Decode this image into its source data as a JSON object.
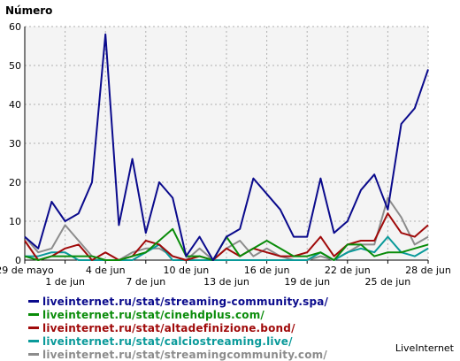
{
  "chart_data": {
    "type": "line",
    "ylabel": "Número",
    "ylim": [
      0,
      60
    ],
    "yticks": [
      0,
      10,
      20,
      30,
      40,
      50,
      60
    ],
    "x": [
      "29 de mayo",
      "30",
      "31",
      "1 de jun",
      "2",
      "3",
      "4 de jun",
      "5",
      "6",
      "7 de jun",
      "8",
      "9",
      "10 de jun",
      "11",
      "12",
      "13 de jun",
      "14",
      "15",
      "16 de jun",
      "17",
      "18",
      "19 de jun",
      "20",
      "21",
      "22 de jun",
      "23",
      "24",
      "25 de jun",
      "26",
      "27",
      "28 de jun"
    ],
    "xtick_labels": [
      {
        "index": 0,
        "label": "29 de mayo"
      },
      {
        "index": 3,
        "label": "1 de jun"
      },
      {
        "index": 6,
        "label": "4 de jun"
      },
      {
        "index": 9,
        "label": "7 de jun"
      },
      {
        "index": 12,
        "label": "10 de jun"
      },
      {
        "index": 15,
        "label": "13 de jun"
      },
      {
        "index": 18,
        "label": "16 de jun"
      },
      {
        "index": 21,
        "label": "19 de jun"
      },
      {
        "index": 24,
        "label": "22 de jun"
      },
      {
        "index": 27,
        "label": "25 de jun"
      },
      {
        "index": 30,
        "label": "28 de jun"
      }
    ],
    "grid": true,
    "series": [
      {
        "name": "liveinternet.ru/stat/streaming-community.spa/",
        "color": "#0a0a8c",
        "values": [
          6,
          3,
          15,
          10,
          12,
          20,
          58,
          9,
          26,
          7,
          20,
          16,
          1,
          6,
          0,
          6,
          8,
          21,
          17,
          13,
          6,
          6,
          21,
          7,
          10,
          18,
          22,
          13,
          35,
          39,
          49
        ]
      },
      {
        "name": "liveinternet.ru/stat/cinehdplus.com/",
        "color": "#0a8c0a",
        "values": [
          1,
          0,
          1,
          1,
          1,
          1,
          0,
          0,
          1,
          2,
          5,
          8,
          1,
          1,
          0,
          6,
          1,
          3,
          5,
          3,
          1,
          1,
          2,
          0,
          4,
          4,
          1,
          2,
          2,
          3,
          4
        ]
      },
      {
        "name": "liveinternet.ru/stat/altadefinizione.bond/",
        "color": "#a00a0a",
        "values": [
          5,
          0,
          1,
          3,
          4,
          0,
          2,
          0,
          1,
          5,
          4,
          1,
          0,
          1,
          0,
          3,
          1,
          3,
          2,
          1,
          1,
          2,
          6,
          1,
          4,
          5,
          5,
          12,
          7,
          6,
          9
        ]
      },
      {
        "name": "liveinternet.ru/stat/calciostreaming.live/",
        "color": "#0a9a9a",
        "values": [
          1,
          1,
          2,
          2,
          0,
          0,
          0,
          0,
          0,
          2,
          4,
          0,
          0,
          0,
          0,
          0,
          0,
          0,
          0,
          0,
          0,
          0,
          2,
          0,
          2,
          3,
          2,
          6,
          2,
          1,
          3
        ]
      },
      {
        "name": "liveinternet.ru/stat/streamingcommunity.com/",
        "color": "#8c8c8c",
        "values": [
          6,
          2,
          3,
          9,
          5,
          1,
          0,
          0,
          2,
          3,
          3,
          1,
          0,
          3,
          0,
          3,
          5,
          1,
          3,
          1,
          0,
          0,
          1,
          0,
          2,
          4,
          4,
          16,
          11,
          4,
          6
        ]
      }
    ]
  },
  "brand": "LiveInternet"
}
